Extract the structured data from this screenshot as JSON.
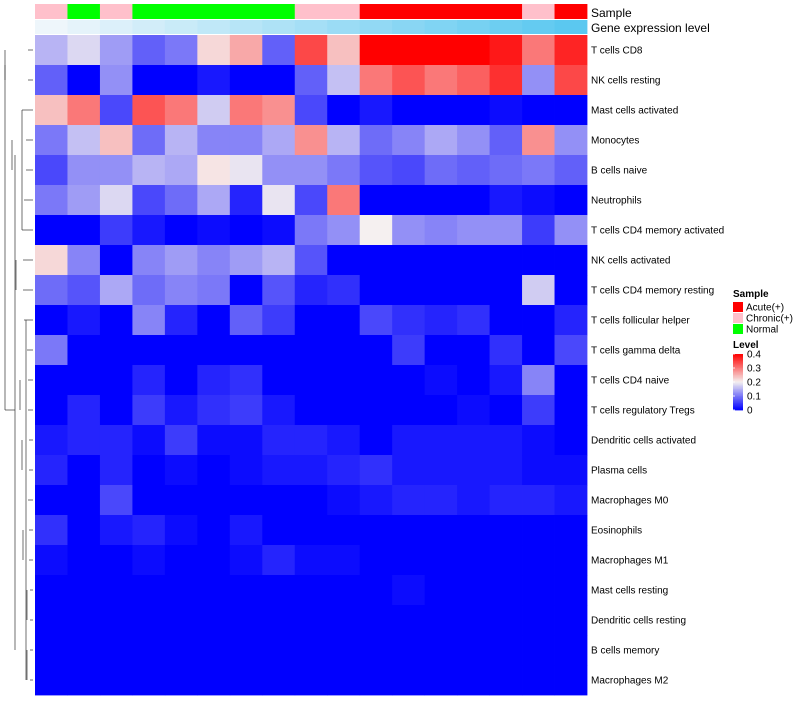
{
  "chart_data": {
    "type": "heatmap",
    "title": "",
    "annotation_labels": {
      "sample": "Sample",
      "expression": "Gene expression level"
    },
    "rows": [
      "T cells CD8",
      "NK cells resting",
      "Mast cells activated",
      "Monocytes",
      "B cells naive",
      "Neutrophils",
      "T cells CD4 memory activated",
      "NK cells activated",
      "T cells CD4 memory resting",
      "T cells follicular helper",
      "T cells gamma delta",
      "T cells CD4 naive",
      "T cells regulatory  Tregs",
      "Dendritic cells activated",
      "Plasma cells",
      "Macrophages M0",
      "Eosinophils",
      "Macrophages M1",
      "Mast cells resting",
      "Dendritic cells resting",
      "B cells memory",
      "Macrophages M2"
    ],
    "sample_groups": [
      "Chronic(+)",
      "Normal",
      "Chronic(+)",
      "Normal",
      "Normal",
      "Normal",
      "Normal",
      "Normal",
      "Chronic(+)",
      "Chronic(+)",
      "Acute(+)",
      "Acute(+)",
      "Acute(+)",
      "Acute(+)",
      "Acute(+)",
      "Chronic(+)",
      "Acute(+)"
    ],
    "expression_levels": [
      0.05,
      0.1,
      0.15,
      0.2,
      0.25,
      0.3,
      0.35,
      0.4,
      0.45,
      0.5,
      0.55,
      0.6,
      0.65,
      0.7,
      0.75,
      0.8,
      0.85
    ],
    "values": [
      [
        0.15,
        0.18,
        0.13,
        0.08,
        0.1,
        0.22,
        0.26,
        0.08,
        0.34,
        0.24,
        0.4,
        0.4,
        0.4,
        0.4,
        0.38,
        0.3,
        0.37
      ],
      [
        0.08,
        0.0,
        0.12,
        0.0,
        0.0,
        0.02,
        0.0,
        0.0,
        0.08,
        0.16,
        0.3,
        0.33,
        0.3,
        0.32,
        0.36,
        0.12,
        0.34
      ],
      [
        0.24,
        0.3,
        0.06,
        0.33,
        0.3,
        0.17,
        0.3,
        0.28,
        0.06,
        0.0,
        0.02,
        0.0,
        0.0,
        0.0,
        0.01,
        0.0,
        0.0
      ],
      [
        0.1,
        0.16,
        0.24,
        0.09,
        0.15,
        0.11,
        0.11,
        0.14,
        0.28,
        0.15,
        0.09,
        0.11,
        0.14,
        0.12,
        0.08,
        0.28,
        0.12
      ],
      [
        0.06,
        0.12,
        0.12,
        0.15,
        0.14,
        0.21,
        0.19,
        0.12,
        0.12,
        0.1,
        0.07,
        0.06,
        0.09,
        0.08,
        0.09,
        0.1,
        0.08
      ],
      [
        0.1,
        0.13,
        0.18,
        0.06,
        0.09,
        0.14,
        0.03,
        0.19,
        0.06,
        0.3,
        0.0,
        0.0,
        0.0,
        0.0,
        0.02,
        0.01,
        0.0
      ],
      [
        0.0,
        0.0,
        0.05,
        0.02,
        0.0,
        0.01,
        0.0,
        0.01,
        0.1,
        0.12,
        0.2,
        0.12,
        0.11,
        0.12,
        0.12,
        0.05,
        0.12
      ],
      [
        0.22,
        0.11,
        0.0,
        0.11,
        0.13,
        0.11,
        0.13,
        0.15,
        0.07,
        0.0,
        0.0,
        0.0,
        0.0,
        0.0,
        0.0,
        0.0,
        0.0
      ],
      [
        0.09,
        0.07,
        0.14,
        0.09,
        0.11,
        0.1,
        0.0,
        0.07,
        0.03,
        0.04,
        0.0,
        0.0,
        0.0,
        0.0,
        0.0,
        0.17,
        0.0
      ],
      [
        0.0,
        0.02,
        0.0,
        0.11,
        0.03,
        0.0,
        0.08,
        0.05,
        0.0,
        0.0,
        0.06,
        0.04,
        0.03,
        0.04,
        0.0,
        0.0,
        0.03
      ],
      [
        0.1,
        0.0,
        0.0,
        0.0,
        0.0,
        0.0,
        0.0,
        0.0,
        0.0,
        0.0,
        0.0,
        0.05,
        0.0,
        0.0,
        0.04,
        0.0,
        0.06
      ],
      [
        0.0,
        0.0,
        0.0,
        0.03,
        0.0,
        0.03,
        0.04,
        0.0,
        0.0,
        0.0,
        0.0,
        0.0,
        0.01,
        0.0,
        0.02,
        0.11,
        0.0
      ],
      [
        0.0,
        0.03,
        0.0,
        0.05,
        0.02,
        0.04,
        0.05,
        0.02,
        0.0,
        0.0,
        0.0,
        0.0,
        0.0,
        0.01,
        0.0,
        0.05,
        0.0
      ],
      [
        0.02,
        0.03,
        0.03,
        0.01,
        0.05,
        0.01,
        0.01,
        0.03,
        0.03,
        0.02,
        0.0,
        0.02,
        0.02,
        0.02,
        0.02,
        0.01,
        0.0
      ],
      [
        0.03,
        0.0,
        0.03,
        0.0,
        0.01,
        0.0,
        0.01,
        0.02,
        0.02,
        0.03,
        0.04,
        0.02,
        0.02,
        0.02,
        0.02,
        0.01,
        0.01
      ],
      [
        0.0,
        0.0,
        0.06,
        0.0,
        0.0,
        0.0,
        0.0,
        0.0,
        0.0,
        0.01,
        0.02,
        0.03,
        0.03,
        0.02,
        0.03,
        0.03,
        0.02
      ],
      [
        0.04,
        0.0,
        0.02,
        0.03,
        0.01,
        0.0,
        0.02,
        0.0,
        0.0,
        0.0,
        0.0,
        0.0,
        0.0,
        0.0,
        0.0,
        0.0,
        0.0
      ],
      [
        0.01,
        0.0,
        0.0,
        0.01,
        0.0,
        0.0,
        0.01,
        0.03,
        0.01,
        0.01,
        0.0,
        0.0,
        0.0,
        0.0,
        0.0,
        0.0,
        0.0
      ],
      [
        0.0,
        0.0,
        0.0,
        0.0,
        0.0,
        0.0,
        0.0,
        0.0,
        0.0,
        0.0,
        0.0,
        0.01,
        0.0,
        0.0,
        0.0,
        0.0,
        0.0
      ],
      [
        0.0,
        0.0,
        0.0,
        0.0,
        0.0,
        0.0,
        0.0,
        0.0,
        0.0,
        0.0,
        0.0,
        0.0,
        0.0,
        0.0,
        0.0,
        0.0,
        0.0
      ],
      [
        0.0,
        0.0,
        0.0,
        0.0,
        0.0,
        0.0,
        0.0,
        0.0,
        0.0,
        0.0,
        0.0,
        0.0,
        0.0,
        0.0,
        0.0,
        0.0,
        0.0
      ],
      [
        0.0,
        0.0,
        0.0,
        0.0,
        0.0,
        0.0,
        0.0,
        0.0,
        0.0,
        0.0,
        0.0,
        0.0,
        0.0,
        0.0,
        0.0,
        0.0,
        0.0
      ]
    ],
    "color_scale": {
      "min": 0,
      "max": 0.4,
      "low_color": "#0000ff",
      "mid_value": 0.2,
      "mid_color": "#f5f0f0",
      "high_color": "#ff0000"
    },
    "legend": {
      "position": "right",
      "sample_title": "Sample",
      "sample_entries": [
        {
          "label": "Acute(+)",
          "color": "#ff0000"
        },
        {
          "label": "Chronic(+)",
          "color": "#ffc0cb"
        },
        {
          "label": "Normal",
          "color": "#00ff00"
        }
      ],
      "level_title": "Level",
      "level_ticks": [
        "0",
        "0.1",
        "0.2",
        "0.3",
        "0.4"
      ],
      "level_tick_values": [
        0,
        0.1,
        0.2,
        0.3,
        0.4
      ]
    },
    "expression_color_low": "#eef6fb",
    "expression_color_high": "#5bc8f0",
    "dendrogram": "rows",
    "grid": false
  }
}
